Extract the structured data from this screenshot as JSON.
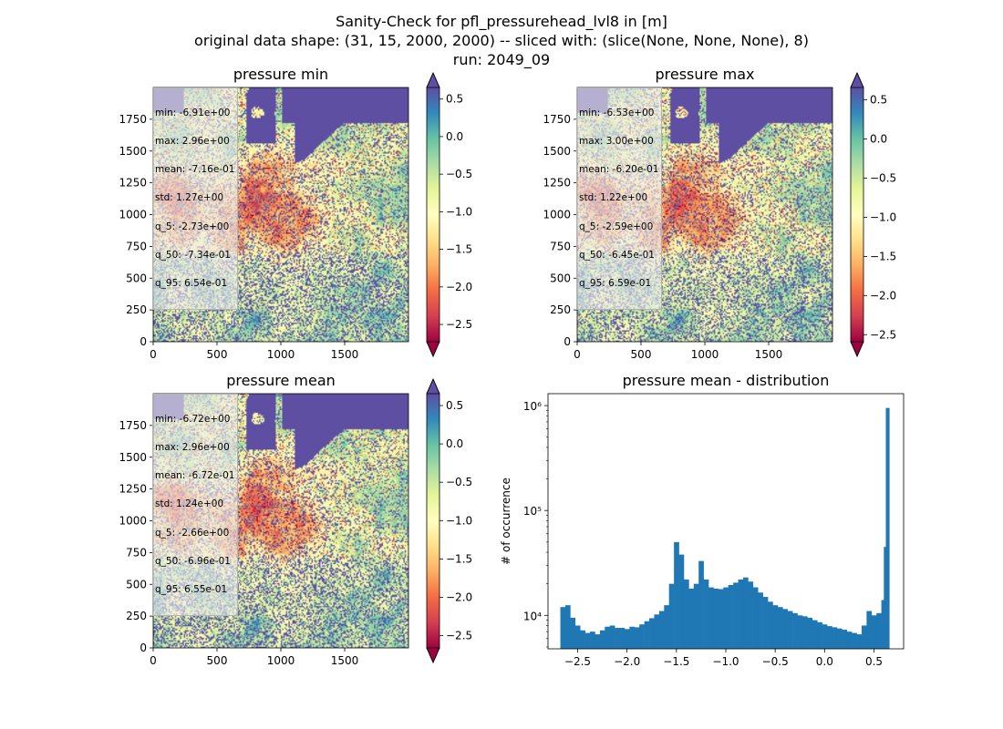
{
  "figure": {
    "title_lines": [
      "Sanity-Check for pfl_pressurehead_lvl8 in [m]",
      "original data shape: (31, 15, 2000, 2000) -- sliced with: (slice(None, None, None), 8)",
      "run: 2049_09"
    ]
  },
  "panels": [
    {
      "title": "pressure min",
      "stats": [
        "min: -6.91e+00",
        "max: 2.96e+00",
        "mean: -7.16e-01",
        "std: 1.27e+00",
        "q_5: -2.73e+00",
        "q_50: -7.34e-01",
        "q_95: 6.54e-01"
      ],
      "colorbar": {
        "cmap": "Spectral",
        "vmin": -2.73,
        "vmax": 0.654,
        "ticks": [
          "0.5",
          "0.0",
          "−0.5",
          "−1.0",
          "−1.5",
          "−2.0",
          "−2.5"
        ]
      }
    },
    {
      "title": "pressure max",
      "stats": [
        "min: -6.53e+00",
        "max: 3.00e+00",
        "mean: -6.20e-01",
        "std: 1.22e+00",
        "q_5: -2.59e+00",
        "q_50: -6.45e-01",
        "q_95: 6.59e-01"
      ],
      "colorbar": {
        "cmap": "Spectral",
        "vmin": -2.59,
        "vmax": 0.659,
        "ticks": [
          "0.5",
          "0.0",
          "−0.5",
          "−1.0",
          "−1.5",
          "−2.0",
          "−2.5"
        ]
      }
    },
    {
      "title": "pressure mean",
      "stats": [
        "min: -6.72e+00",
        "max: 2.96e+00",
        "mean: -6.72e-01",
        "std: 1.24e+00",
        "q_5: -2.66e+00",
        "q_50: -6.96e-01",
        "q_95: 6.55e-01"
      ],
      "colorbar": {
        "cmap": "Spectral",
        "vmin": -2.66,
        "vmax": 0.655,
        "ticks": [
          "0.5",
          "0.0",
          "−0.5",
          "−1.0",
          "−1.5",
          "−2.0",
          "−2.5"
        ]
      }
    }
  ],
  "map_axes": {
    "x_ticks": [
      "0",
      "500",
      "1000",
      "1500"
    ],
    "y_ticks": [
      "0",
      "250",
      "500",
      "750",
      "1000",
      "1250",
      "1500",
      "1750"
    ],
    "xlim": [
      0,
      2000
    ],
    "ylim": [
      0,
      2000
    ]
  },
  "chart_data": [
    {
      "type": "heatmap",
      "title": "pressure min",
      "shape": [
        2000,
        2000
      ],
      "xlim": [
        0,
        2000
      ],
      "ylim": [
        0,
        2000
      ],
      "x_ticks": [
        0,
        500,
        1000,
        1500
      ],
      "y_ticks": [
        0,
        250,
        500,
        750,
        1000,
        1250,
        1500,
        1750
      ],
      "colorbar": {
        "cmap": "Spectral",
        "range": [
          -2.73,
          0.654
        ],
        "ticks": [
          0.5,
          0.0,
          -0.5,
          -1.0,
          -1.5,
          -2.0,
          -2.5
        ],
        "extend": "both"
      }
    },
    {
      "type": "heatmap",
      "title": "pressure max",
      "shape": [
        2000,
        2000
      ],
      "xlim": [
        0,
        2000
      ],
      "ylim": [
        0,
        2000
      ],
      "x_ticks": [
        0,
        500,
        1000,
        1500
      ],
      "y_ticks": [
        0,
        250,
        500,
        750,
        1000,
        1250,
        1500,
        1750
      ],
      "colorbar": {
        "cmap": "Spectral",
        "range": [
          -2.59,
          0.659
        ],
        "ticks": [
          0.5,
          0.0,
          -0.5,
          -1.0,
          -1.5,
          -2.0,
          -2.5
        ],
        "extend": "both"
      }
    },
    {
      "type": "heatmap",
      "title": "pressure mean",
      "shape": [
        2000,
        2000
      ],
      "xlim": [
        0,
        2000
      ],
      "ylim": [
        0,
        2000
      ],
      "x_ticks": [
        0,
        500,
        1000,
        1500
      ],
      "y_ticks": [
        0,
        250,
        500,
        750,
        1000,
        1250,
        1500,
        1750
      ],
      "colorbar": {
        "cmap": "Spectral",
        "range": [
          -2.66,
          0.655
        ],
        "ticks": [
          0.5,
          0.0,
          -0.5,
          -1.0,
          -1.5,
          -2.0,
          -2.5
        ],
        "extend": "both"
      }
    },
    {
      "type": "bar",
      "title": "pressure mean - distribution",
      "ylabel": "# of occurrence",
      "xlabel": "",
      "yscale": "log",
      "xlim": [
        -2.8,
        0.8
      ],
      "ylim": [
        4800,
        1300000
      ],
      "x_ticks": [
        "−2.5",
        "−2.0",
        "−1.5",
        "−1.0",
        "−0.5",
        "0.0",
        "0.5"
      ],
      "x_tick_values": [
        -2.5,
        -2.0,
        -1.5,
        -1.0,
        -0.5,
        0.0,
        0.5
      ],
      "y_ticks": [
        "10⁴",
        "10⁵",
        "10⁶"
      ],
      "y_tick_values": [
        10000,
        100000,
        1000000
      ],
      "color": "#1f77b4",
      "bins": [
        [
          -2.65,
          12000
        ],
        [
          -2.6,
          12500
        ],
        [
          -2.55,
          9500
        ],
        [
          -2.5,
          8000
        ],
        [
          -2.45,
          7200
        ],
        [
          -2.4,
          6800
        ],
        [
          -2.35,
          7000
        ],
        [
          -2.3,
          6600
        ],
        [
          -2.25,
          7200
        ],
        [
          -2.2,
          7800
        ],
        [
          -2.15,
          8000
        ],
        [
          -2.1,
          7600
        ],
        [
          -2.05,
          7600
        ],
        [
          -2.0,
          7400
        ],
        [
          -1.95,
          7800
        ],
        [
          -1.9,
          7700
        ],
        [
          -1.85,
          8200
        ],
        [
          -1.8,
          8800
        ],
        [
          -1.75,
          9400
        ],
        [
          -1.7,
          10200
        ],
        [
          -1.65,
          11000
        ],
        [
          -1.6,
          12500
        ],
        [
          -1.55,
          20000
        ],
        [
          -1.5,
          50000
        ],
        [
          -1.45,
          38000
        ],
        [
          -1.4,
          22000
        ],
        [
          -1.35,
          18000
        ],
        [
          -1.3,
          20000
        ],
        [
          -1.25,
          33000
        ],
        [
          -1.2,
          22000
        ],
        [
          -1.15,
          18500
        ],
        [
          -1.1,
          18000
        ],
        [
          -1.05,
          17800
        ],
        [
          -1.0,
          18500
        ],
        [
          -0.95,
          19500
        ],
        [
          -0.9,
          20500
        ],
        [
          -0.85,
          22000
        ],
        [
          -0.8,
          23000
        ],
        [
          -0.75,
          21000
        ],
        [
          -0.7,
          18500
        ],
        [
          -0.65,
          16500
        ],
        [
          -0.6,
          15000
        ],
        [
          -0.55,
          13500
        ],
        [
          -0.5,
          12500
        ],
        [
          -0.45,
          12000
        ],
        [
          -0.4,
          11500
        ],
        [
          -0.35,
          11000
        ],
        [
          -0.3,
          10500
        ],
        [
          -0.25,
          10000
        ],
        [
          -0.2,
          9800
        ],
        [
          -0.15,
          9500
        ],
        [
          -0.1,
          9000
        ],
        [
          -0.05,
          8600
        ],
        [
          0.0,
          8200
        ],
        [
          0.05,
          7900
        ],
        [
          0.1,
          7700
        ],
        [
          0.15,
          7500
        ],
        [
          0.2,
          7300
        ],
        [
          0.25,
          7000
        ],
        [
          0.3,
          6800
        ],
        [
          0.35,
          6600
        ],
        [
          0.4,
          8000
        ],
        [
          0.45,
          11000
        ],
        [
          0.5,
          10000
        ],
        [
          0.55,
          10500
        ],
        [
          0.6,
          14000
        ],
        [
          0.625,
          45000
        ],
        [
          0.645,
          950000
        ]
      ]
    }
  ]
}
